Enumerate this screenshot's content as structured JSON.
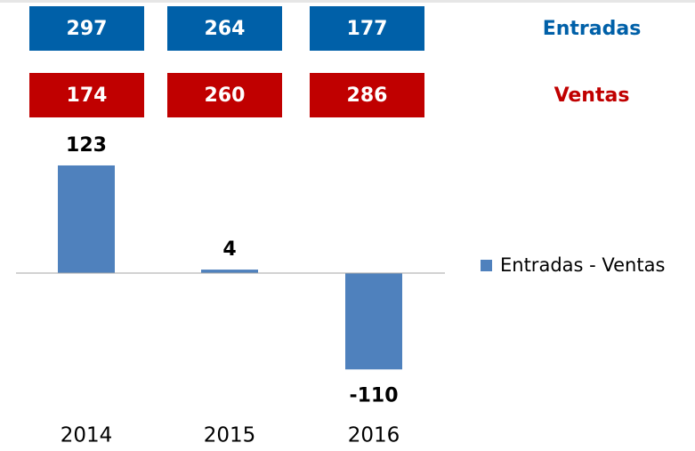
{
  "summary": {
    "rows": [
      {
        "label": "Entradas",
        "color": "#0060a8",
        "values": [
          297,
          264,
          177
        ]
      },
      {
        "label": "Ventas",
        "color": "#c00000",
        "values": [
          174,
          260,
          286
        ]
      }
    ]
  },
  "chart_data": {
    "type": "bar",
    "categories": [
      "2014",
      "2015",
      "2016"
    ],
    "series": [
      {
        "name": "Entradas - Ventas",
        "color": "#4f81bd",
        "values": [
          123,
          4,
          -110
        ]
      }
    ],
    "ylim": [
      -140,
      150
    ],
    "grid": false
  }
}
